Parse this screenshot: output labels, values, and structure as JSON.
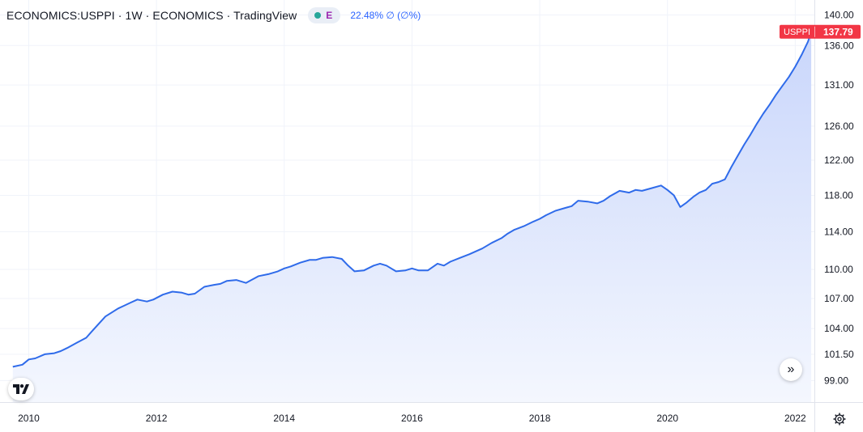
{
  "header": {
    "title": "ECONOMICS:USPPI · 1W · ECONOMICS · TradingView",
    "badge_letter": "E",
    "change_text": "22.48% ∅ (∅%)"
  },
  "icons": {
    "logo": "tradingview-logo-icon",
    "scroll": "double-chevron-right-icon",
    "settings": "gear-icon"
  },
  "colors": {
    "line": "#2f6bea",
    "area_top": "#c9d6fb",
    "area_bottom": "#f4f7fe",
    "price_tag": "#f23645",
    "badge_dot": "#26a69a",
    "badge_letter": "#9c27b0"
  },
  "chart_data": {
    "type": "area",
    "series": [
      {
        "name": "USPPI",
        "last_value_label": "137.79",
        "x": [
          2009.75,
          2009.9,
          2010.0,
          2010.1,
          2010.25,
          2010.4,
          2010.5,
          2010.6,
          2010.75,
          2010.9,
          2011.0,
          2011.2,
          2011.4,
          2011.5,
          2011.6,
          2011.7,
          2011.85,
          2011.95,
          2012.1,
          2012.25,
          2012.4,
          2012.5,
          2012.6,
          2012.75,
          2012.9,
          2013.0,
          2013.1,
          2013.25,
          2013.4,
          2013.6,
          2013.75,
          2013.9,
          2014.0,
          2014.1,
          2014.25,
          2014.4,
          2014.5,
          2014.6,
          2014.75,
          2014.9,
          2015.0,
          2015.1,
          2015.25,
          2015.4,
          2015.5,
          2015.6,
          2015.75,
          2015.9,
          2016.0,
          2016.1,
          2016.25,
          2016.4,
          2016.5,
          2016.6,
          2016.75,
          2016.9,
          2017.0,
          2017.1,
          2017.25,
          2017.4,
          2017.5,
          2017.6,
          2017.75,
          2017.9,
          2018.0,
          2018.1,
          2018.25,
          2018.4,
          2018.5,
          2018.6,
          2018.75,
          2018.9,
          2019.0,
          2019.1,
          2019.25,
          2019.4,
          2019.5,
          2019.6,
          2019.75,
          2019.9,
          2020.0,
          2020.1,
          2020.2,
          2020.3,
          2020.4,
          2020.5,
          2020.6,
          2020.7,
          2020.8,
          2020.9,
          2021.0,
          2021.1,
          2021.2,
          2021.3,
          2021.4,
          2021.5,
          2021.6,
          2021.7,
          2021.8,
          2021.9,
          2022.0,
          2022.1,
          2022.2,
          2022.25
        ],
        "values": [
          100.3,
          100.5,
          101.0,
          101.1,
          101.5,
          101.6,
          101.8,
          102.1,
          102.6,
          103.1,
          103.8,
          105.2,
          106.0,
          106.3,
          106.6,
          106.9,
          106.7,
          106.9,
          107.4,
          107.7,
          107.6,
          107.4,
          107.5,
          108.2,
          108.4,
          108.5,
          108.8,
          108.9,
          108.6,
          109.3,
          109.5,
          109.8,
          110.1,
          110.3,
          110.7,
          111.0,
          111.0,
          111.2,
          111.3,
          111.1,
          110.4,
          109.8,
          109.9,
          110.4,
          110.6,
          110.4,
          109.8,
          109.9,
          110.1,
          109.9,
          109.9,
          110.6,
          110.4,
          110.8,
          111.2,
          111.6,
          111.9,
          112.2,
          112.8,
          113.3,
          113.8,
          114.2,
          114.6,
          115.1,
          115.4,
          115.8,
          116.3,
          116.6,
          116.8,
          117.4,
          117.3,
          117.1,
          117.4,
          117.9,
          118.5,
          118.3,
          118.6,
          118.5,
          118.8,
          119.1,
          118.6,
          118.0,
          116.7,
          117.2,
          117.8,
          118.3,
          118.6,
          119.3,
          119.5,
          119.8,
          121.2,
          122.5,
          123.8,
          125.0,
          126.3,
          127.5,
          128.6,
          129.8,
          130.9,
          132.0,
          133.3,
          134.8,
          136.5,
          137.79
        ]
      }
    ],
    "x_ticks": [
      "2010",
      "2012",
      "2014",
      "2016",
      "2018",
      "2020",
      "2022"
    ],
    "y_ticks": [
      "99.00",
      "101.50",
      "104.00",
      "107.00",
      "110.00",
      "114.00",
      "118.00",
      "122.00",
      "126.00",
      "131.00",
      "136.00",
      "140.00"
    ],
    "xlim": [
      2009.55,
      2022.3
    ],
    "ylim": [
      97.0,
      142.0
    ],
    "y_scale": "log",
    "grid": true,
    "legend": "none"
  }
}
